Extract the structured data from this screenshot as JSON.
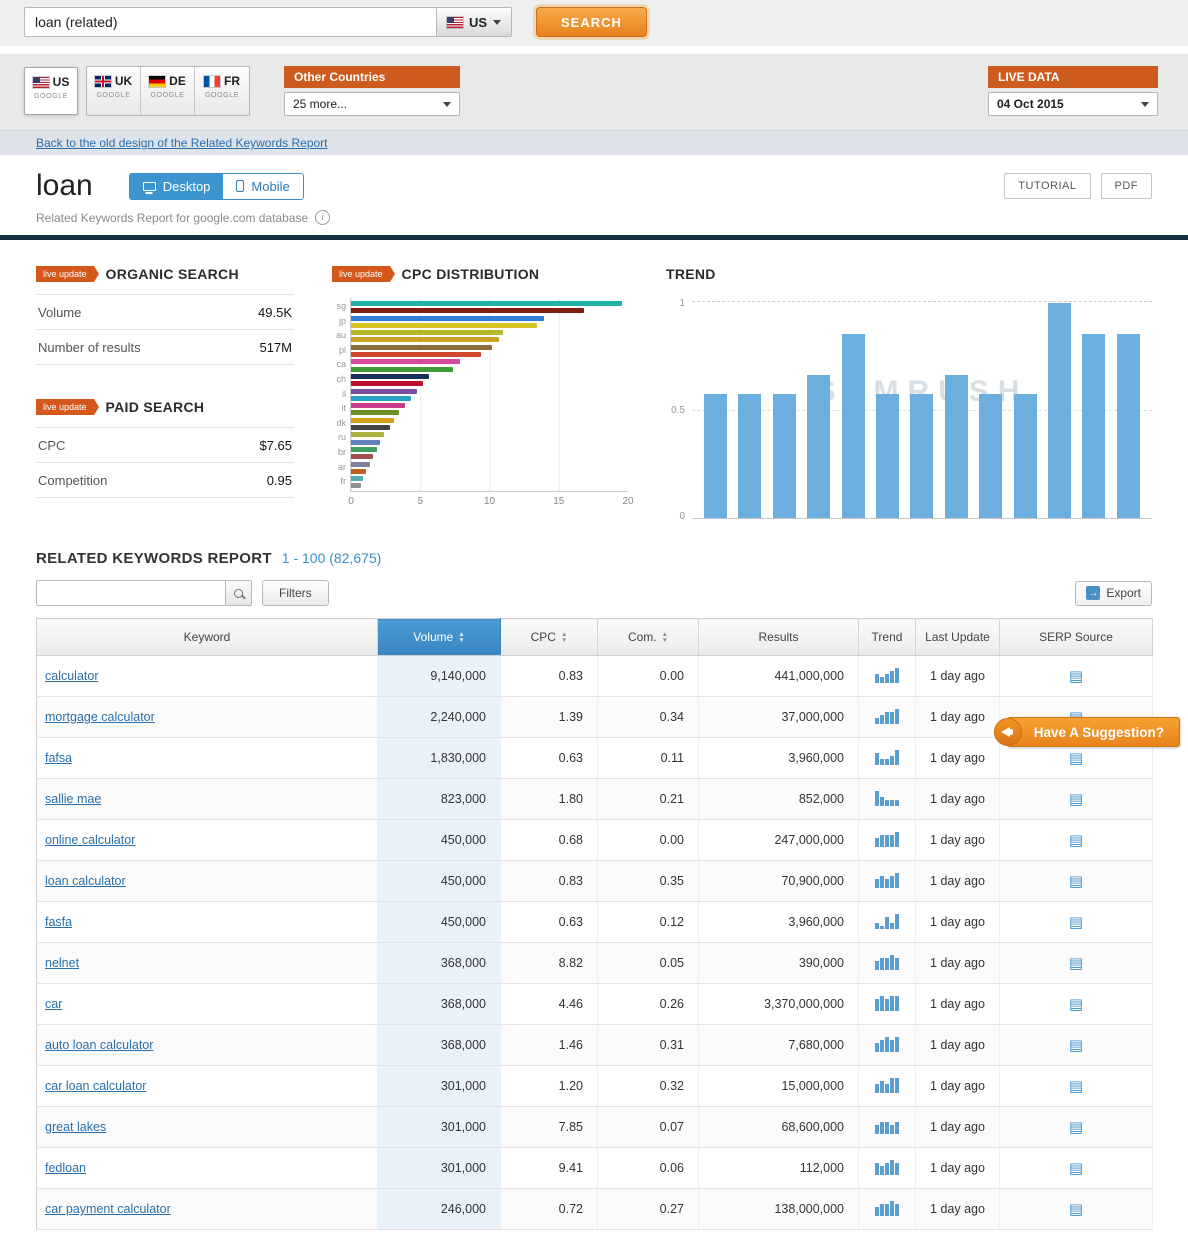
{
  "top_bar": {
    "search_value": "loan (related)",
    "region_select": "US",
    "search_button": "SEARCH"
  },
  "country_tabs": [
    {
      "code": "US",
      "sub": "GOOGLE"
    },
    {
      "code": "UK",
      "sub": "GOOGLE"
    },
    {
      "code": "DE",
      "sub": "GOOGLE"
    },
    {
      "code": "FR",
      "sub": "GOOGLE"
    }
  ],
  "other_countries": {
    "header": "Other Countries",
    "dropdown": "25 more..."
  },
  "live_data": {
    "header": "LIVE DATA",
    "date": "04 Oct 2015"
  },
  "back_link": "Back to the old design of the Related Keywords Report",
  "page_header": {
    "title": "loan",
    "device_tabs": [
      {
        "label": "Desktop"
      },
      {
        "label": "Mobile"
      }
    ],
    "subtitle": "Related Keywords Report for google.com database",
    "tutorial_button": "TUTORIAL",
    "pdf_button": "PDF"
  },
  "panels": {
    "organic_search": {
      "badge": "live update",
      "title": "ORGANIC SEARCH",
      "rows": [
        {
          "label": "Volume",
          "value": "49.5K"
        },
        {
          "label": "Number of results",
          "value": "517M"
        }
      ]
    },
    "paid_search": {
      "badge": "live update",
      "title": "PAID SEARCH",
      "rows": [
        {
          "label": "CPC",
          "value": "$7.65"
        },
        {
          "label": "Competition",
          "value": "0.95"
        }
      ]
    },
    "cpc_distribution": {
      "badge": "live update",
      "title": "CPC DISTRIBUTION",
      "chart_data": {
        "type": "bar",
        "orientation": "horizontal",
        "ylabels": [
          "sg",
          "jp",
          "au",
          "pl",
          "ca",
          "ch",
          "il",
          "it",
          "dk",
          "ru",
          "br",
          "ar",
          "fr"
        ],
        "values": [
          19.6,
          16.8,
          13.9,
          13.4,
          11.0,
          10.7,
          10.2,
          9.4,
          7.9,
          7.4,
          5.6,
          5.2,
          4.8,
          4.3,
          3.9,
          3.5,
          3.1,
          2.8,
          2.4,
          2.1,
          1.9,
          1.6,
          1.4,
          1.1,
          0.9,
          0.7
        ],
        "colors": [
          "#1fb3a6",
          "#7e1d12",
          "#2f7ed8",
          "#d8c422",
          "#b4b82a",
          "#c9a227",
          "#8a6d3b",
          "#d1482f",
          "#d44a9c",
          "#3f9c35",
          "#16305a",
          "#c01030",
          "#7a4fa0",
          "#2aa0c8",
          "#c83a8a",
          "#6b8e23",
          "#d4a017",
          "#444444",
          "#b0b040",
          "#6080c0",
          "#40a060",
          "#a05050",
          "#8080a0",
          "#c06020",
          "#50b0b0",
          "#909090"
        ],
        "xticks": [
          0,
          5,
          10,
          15,
          20
        ],
        "xlim": [
          0,
          20
        ]
      }
    },
    "trend": {
      "title": "TREND",
      "watermark": "SEMRUSH",
      "chart_data": {
        "type": "bar",
        "values": [
          0.57,
          0.57,
          0.57,
          0.66,
          0.85,
          0.57,
          0.57,
          0.66,
          0.57,
          0.57,
          0.99,
          0.85,
          0.85
        ],
        "yticks": [
          "1",
          "0.5",
          "0"
        ],
        "ylim": [
          0,
          1
        ]
      }
    }
  },
  "report": {
    "title": "RELATED KEYWORDS REPORT",
    "range": "1 - 100 (82,675)",
    "search_placeholder": "",
    "filters_label": "Filters",
    "export_label": "Export",
    "columns": [
      {
        "label": "Keyword",
        "sortable": false
      },
      {
        "label": "Volume",
        "sortable": true,
        "active": true
      },
      {
        "label": "CPC",
        "sortable": true
      },
      {
        "label": "Com.",
        "sortable": true
      },
      {
        "label": "Results",
        "sortable": false
      },
      {
        "label": "Trend",
        "sortable": false
      },
      {
        "label": "Last Update",
        "sortable": false
      },
      {
        "label": "SERP Source",
        "sortable": false
      }
    ],
    "rows": [
      {
        "keyword": "calculator",
        "volume": "9,140,000",
        "cpc": "0.83",
        "com": "0.00",
        "results": "441,000,000",
        "trend": [
          3,
          2,
          3,
          4,
          5
        ],
        "last_update": "1 day ago"
      },
      {
        "keyword": "mortgage calculator",
        "volume": "2,240,000",
        "cpc": "1.39",
        "com": "0.34",
        "results": "37,000,000",
        "trend": [
          2,
          3,
          4,
          4,
          5
        ],
        "last_update": "1 day ago"
      },
      {
        "keyword": "fafsa",
        "volume": "1,830,000",
        "cpc": "0.63",
        "com": "0.11",
        "results": "3,960,000",
        "trend": [
          4,
          2,
          2,
          3,
          5
        ],
        "last_update": "1 day ago"
      },
      {
        "keyword": "sallie mae",
        "volume": "823,000",
        "cpc": "1.80",
        "com": "0.21",
        "results": "852,000",
        "trend": [
          5,
          3,
          2,
          2,
          2
        ],
        "last_update": "1 day ago"
      },
      {
        "keyword": "online calculator",
        "volume": "450,000",
        "cpc": "0.68",
        "com": "0.00",
        "results": "247,000,000",
        "trend": [
          3,
          4,
          4,
          4,
          5
        ],
        "last_update": "1 day ago"
      },
      {
        "keyword": "loan calculator",
        "volume": "450,000",
        "cpc": "0.83",
        "com": "0.35",
        "results": "70,900,000",
        "trend": [
          3,
          4,
          3,
          4,
          5
        ],
        "last_update": "1 day ago"
      },
      {
        "keyword": "fasfa",
        "volume": "450,000",
        "cpc": "0.63",
        "com": "0.12",
        "results": "3,960,000",
        "trend": [
          2,
          1,
          4,
          2,
          5
        ],
        "last_update": "1 day ago"
      },
      {
        "keyword": "nelnet",
        "volume": "368,000",
        "cpc": "8.82",
        "com": "0.05",
        "results": "390,000",
        "trend": [
          3,
          4,
          4,
          5,
          4
        ],
        "last_update": "1 day ago"
      },
      {
        "keyword": "car",
        "volume": "368,000",
        "cpc": "4.46",
        "com": "0.26",
        "results": "3,370,000,000",
        "trend": [
          4,
          5,
          4,
          5,
          5
        ],
        "last_update": "1 day ago"
      },
      {
        "keyword": "auto loan calculator",
        "volume": "368,000",
        "cpc": "1.46",
        "com": "0.31",
        "results": "7,680,000",
        "trend": [
          3,
          4,
          5,
          4,
          5
        ],
        "last_update": "1 day ago"
      },
      {
        "keyword": "car loan calculator",
        "volume": "301,000",
        "cpc": "1.20",
        "com": "0.32",
        "results": "15,000,000",
        "trend": [
          3,
          4,
          3,
          5,
          5
        ],
        "last_update": "1 day ago"
      },
      {
        "keyword": "great lakes",
        "volume": "301,000",
        "cpc": "7.85",
        "com": "0.07",
        "results": "68,600,000",
        "trend": [
          3,
          4,
          4,
          3,
          4
        ],
        "last_update": "1 day ago"
      },
      {
        "keyword": "fedloan",
        "volume": "301,000",
        "cpc": "9.41",
        "com": "0.06",
        "results": "112,000",
        "trend": [
          4,
          3,
          4,
          5,
          4
        ],
        "last_update": "1 day ago"
      },
      {
        "keyword": "car payment calculator",
        "volume": "246,000",
        "cpc": "0.72",
        "com": "0.27",
        "results": "138,000,000",
        "trend": [
          3,
          4,
          4,
          5,
          4
        ],
        "last_update": "1 day ago"
      }
    ]
  },
  "suggestion_banner": {
    "label": "Have A Suggestion?"
  }
}
